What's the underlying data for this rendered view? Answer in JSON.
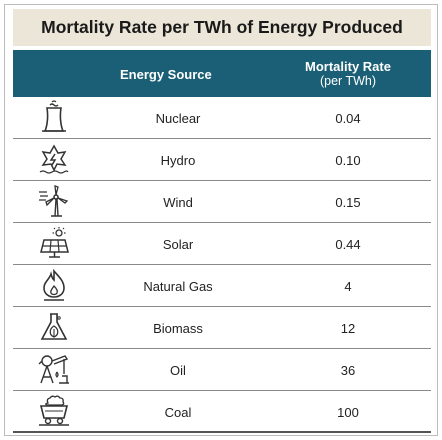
{
  "chart_data": {
    "type": "table",
    "title": "Mortality Rate per TWh of Energy Produced",
    "columns": {
      "source": "Energy Source",
      "rate_line1": "Mortality Rate",
      "rate_line2": "(per TWh)"
    },
    "rows": [
      {
        "source": "Nuclear",
        "value": "0.04",
        "icon": "nuclear-plant-icon"
      },
      {
        "source": "Hydro",
        "value": "0.10",
        "icon": "hydro-icon"
      },
      {
        "source": "Wind",
        "value": "0.15",
        "icon": "wind-turbine-icon"
      },
      {
        "source": "Solar",
        "value": "0.44",
        "icon": "solar-panel-icon"
      },
      {
        "source": "Natural Gas",
        "value": "4",
        "icon": "flame-icon"
      },
      {
        "source": "Biomass",
        "value": "12",
        "icon": "biomass-flask-icon"
      },
      {
        "source": "Oil",
        "value": "36",
        "icon": "oil-pump-icon"
      },
      {
        "source": "Coal",
        "value": "100",
        "icon": "coal-cart-icon"
      }
    ]
  },
  "colors": {
    "title_bg": "#ebe6d8",
    "header_bg": "#1a5f75",
    "icon_stroke": "#333333"
  }
}
